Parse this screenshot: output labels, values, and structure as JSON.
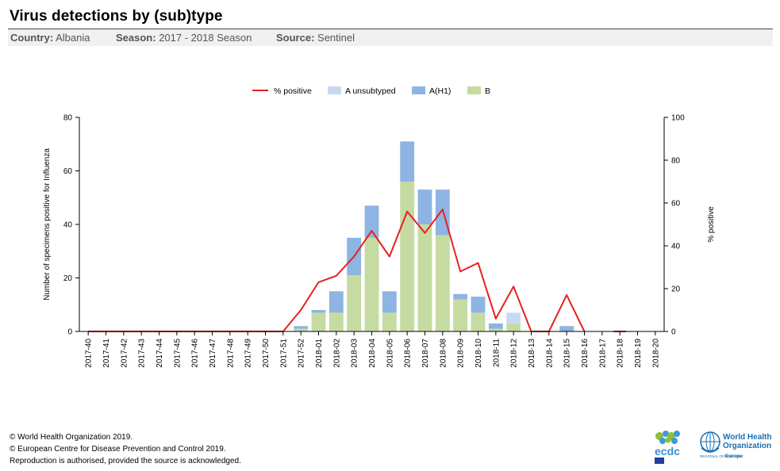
{
  "header": {
    "title": "Virus detections by (sub)type",
    "country_label": "Country:",
    "country_value": "Albania",
    "season_label": "Season:",
    "season_value": "2017 - 2018 Season",
    "source_label": "Source:",
    "source_value": "Sentinel"
  },
  "chart_data": {
    "type": "bar",
    "stacked": true,
    "categories": [
      "2017-40",
      "2017-41",
      "2017-42",
      "2017-43",
      "2017-44",
      "2017-45",
      "2017-46",
      "2017-47",
      "2017-48",
      "2017-49",
      "2017-50",
      "2017-51",
      "2017-52",
      "2018-01",
      "2018-02",
      "2018-03",
      "2018-04",
      "2018-05",
      "2018-06",
      "2018-07",
      "2018-08",
      "2018-09",
      "2018-10",
      "2018-11",
      "2018-12",
      "2018-13",
      "2018-14",
      "2018-15",
      "2018-16",
      "2018-17",
      "2018-18",
      "2018-19",
      "2018-20"
    ],
    "series": [
      {
        "name": "B",
        "kind": "bar",
        "color": "#c6dba1",
        "values": [
          0,
          0,
          0,
          0,
          0,
          0,
          0,
          0,
          0,
          0,
          0,
          0,
          1,
          7,
          7,
          21,
          35,
          7,
          56,
          40,
          36,
          12,
          7,
          1,
          3,
          0,
          0,
          0,
          0,
          0,
          0,
          0,
          0
        ]
      },
      {
        "name": "A(H1)",
        "kind": "bar",
        "color": "#8eb4e3",
        "values": [
          0,
          0,
          0,
          0,
          0,
          0,
          0,
          0,
          0,
          0,
          0,
          0,
          1,
          1,
          8,
          14,
          12,
          8,
          15,
          13,
          17,
          2,
          6,
          2,
          0,
          0,
          0,
          2,
          0,
          0,
          0,
          0,
          0
        ]
      },
      {
        "name": "A unsubtyped",
        "kind": "bar",
        "color": "#c6d9f0",
        "values": [
          0,
          0,
          0,
          0,
          0,
          0,
          0,
          0,
          0,
          0,
          0,
          0,
          0,
          0,
          0,
          0,
          0,
          0,
          0,
          0,
          0,
          0,
          0,
          0,
          4,
          0,
          0,
          0,
          0,
          0,
          0,
          0,
          0
        ]
      },
      {
        "name": "% positive",
        "kind": "line",
        "axis": "right",
        "color": "#e8201c",
        "values": [
          0,
          0,
          0,
          0,
          0,
          0,
          0,
          0,
          0,
          0,
          0,
          0,
          10,
          23,
          26,
          35,
          47,
          35,
          56,
          46,
          57,
          28,
          32,
          6,
          21,
          0,
          0,
          17,
          0,
          null,
          0,
          null,
          null
        ]
      }
    ],
    "legend_order": [
      "% positive",
      "A unsubtyped",
      "A(H1)",
      "B"
    ],
    "ylabel": "Number of specimens positive for Influenza",
    "ylim": [
      0,
      80
    ],
    "yticks": [
      0,
      20,
      40,
      60,
      80
    ],
    "y2label": "% positive",
    "y2lim": [
      0,
      100
    ],
    "y2ticks": [
      0,
      20,
      40,
      60,
      80,
      100
    ],
    "legend_position": "top-center"
  },
  "footer": {
    "line1": "© World Health Organization 2019.",
    "line2": "© European Centre for Disease Prevention and Control 2019.",
    "line3": "Reproduction is authorised, provided the source is acknowledged."
  },
  "logos": {
    "ecdc_text": "ecdc",
    "who_line1": "World Health",
    "who_line2": "Organization",
    "who_line3": "REGIONAL OFFICE FOR",
    "who_line4": "Europe"
  }
}
